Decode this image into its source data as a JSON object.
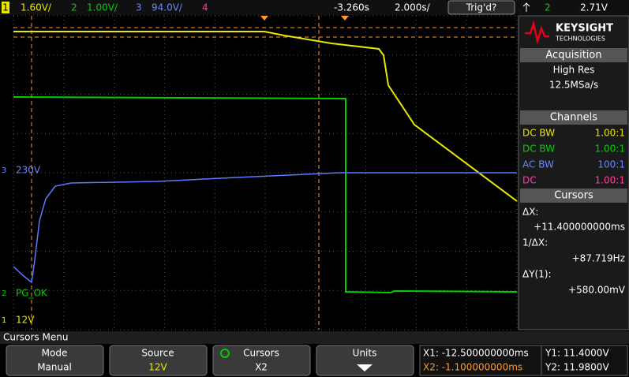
{
  "top_bar": {
    "channels": [
      {
        "number": "1",
        "scale": "1.60V/"
      },
      {
        "number": "2",
        "scale": "1.00V/"
      },
      {
        "number": "3",
        "scale": "94.0V/"
      },
      {
        "number": "4"
      }
    ],
    "time_offset": "-3.260s",
    "time_scale": "2.000s/",
    "trigger_status": "Trig'd?",
    "trigger_source": "2",
    "trigger_level": "2.71V"
  },
  "screen_labels": [
    {
      "number": "3",
      "label": "230V"
    },
    {
      "number": "2",
      "label": "PG_OK"
    },
    {
      "number": "1",
      "label": "12V"
    }
  ],
  "side_panel": {
    "brand": "KEYSIGHT",
    "brand_sub": "TECHNOLOGIES",
    "acquisition": {
      "title": "Acquisition",
      "mode": "High Res",
      "rate": "12.5MSa/s"
    },
    "channels": {
      "title": "Channels",
      "rows": [
        {
          "coupling": "DC BW",
          "probe": "1.00:1"
        },
        {
          "coupling": "DC BW",
          "probe": "1.00:1"
        },
        {
          "coupling": "AC BW",
          "probe": "100:1"
        },
        {
          "coupling": "DC",
          "probe": "1.00:1"
        }
      ]
    },
    "cursors": {
      "title": "Cursors",
      "dx_label": "ΔX:",
      "dx": "+11.400000000ms",
      "inv_label": "1/ΔX:",
      "inv": "+87.719Hz",
      "dy_label": "ΔY(1):",
      "dy": "+580.00mV"
    }
  },
  "menu": {
    "title": "Cursors Menu",
    "softkeys": [
      {
        "label": "Mode",
        "value": "Manual"
      },
      {
        "label": "Source",
        "value": "12V"
      },
      {
        "label": "Cursors",
        "value": "X2"
      },
      {
        "label": "Units"
      }
    ],
    "readouts": {
      "x1": "X1: -12.500000000ms",
      "x2": "X2: -1.100000000ms",
      "y1": "Y1: 11.4000V",
      "y2": "Y2: 11.9800V"
    }
  }
}
